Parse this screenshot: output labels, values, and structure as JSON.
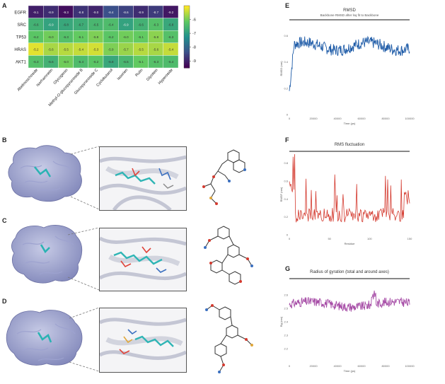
{
  "panels": {
    "a": "A",
    "b": "B",
    "c": "C",
    "d": "D",
    "e": "E",
    "f": "F",
    "g": "G"
  },
  "chart_data": [
    {
      "panel": "A",
      "type": "heatmap",
      "rows": [
        "EGFR",
        "SRC",
        "TP53",
        "HRAS",
        "AKT1"
      ],
      "columns": [
        "Abelmoschoside",
        "Isorhamnetin",
        "Glycogenin",
        "Methyl-O-glucopyranoside B",
        "Glucopyranoside C",
        "Cyclobutanol",
        "Isoorien",
        "Rutin",
        "Glycitein",
        "Hyperoside"
      ],
      "values": [
        [
          -9.1,
          -8.9,
          -9.3,
          -8.8,
          -9.0,
          -8.4,
          -8.6,
          -8.9,
          -8.7,
          -9.2
        ],
        [
          -6.6,
          -6.9,
          -6.8,
          -6.7,
          -6.5,
          -6.4,
          -6.9,
          -6.6,
          -6.3,
          -6.8
        ],
        [
          -6.2,
          -6.0,
          -6.3,
          -6.1,
          -5.9,
          -6.2,
          -6.0,
          -6.1,
          -5.8,
          -6.3
        ],
        [
          -5.2,
          -5.6,
          -5.5,
          -5.4,
          -5.3,
          -5.9,
          -5.7,
          -5.5,
          -5.6,
          -5.4
        ],
        [
          -6.3,
          -6.6,
          -6.0,
          -6.4,
          -6.2,
          -6.8,
          -6.5,
          -6.1,
          -6.3,
          -6.4
        ]
      ],
      "colorbar_ticks": [
        "-6",
        "-7",
        "-8",
        "-9"
      ],
      "colorbar_range": [
        -9.5,
        -5.0
      ]
    },
    {
      "panel": "E",
      "type": "line",
      "title": "RMSD",
      "subtitle": "Backbone RMSD after lsq fit to Backbone",
      "ylabel": "RMSD (nm)",
      "xlabel": "Time (ps)",
      "color": "#1f5ca8",
      "y_ticks": [
        "0.6",
        "0.4",
        "0.2",
        "0"
      ],
      "ylim": [
        0,
        0.7
      ],
      "x_range": [
        0,
        100000
      ],
      "x_ticks": [
        "0",
        "20000",
        "40000",
        "60000",
        "80000",
        "100000"
      ]
    },
    {
      "panel": "F",
      "type": "line",
      "title": "RMS fluctuation",
      "ylabel": "RMSF (nm)",
      "xlabel": "Residue",
      "color": "#d43a2f",
      "y_ticks": [
        "0.8",
        "0.6",
        "0.4",
        "0.2",
        "0"
      ],
      "ylim": [
        0,
        0.9
      ],
      "x_ticks": [
        "0",
        "50",
        "100",
        "150"
      ]
    },
    {
      "panel": "G",
      "type": "line",
      "title": "Radius of gyration (total and around axes)",
      "ylabel": "Rg (nm)",
      "xlabel": "Time (ps)",
      "color": "#a64ca6",
      "y_ticks": [
        "2.6",
        "2.5",
        "2.4",
        "2.3",
        "2.2"
      ],
      "ylim": [
        2.1,
        2.7
      ],
      "x_ticks": [
        "0",
        "20000",
        "40000",
        "60000",
        "80000",
        "100000"
      ]
    }
  ]
}
